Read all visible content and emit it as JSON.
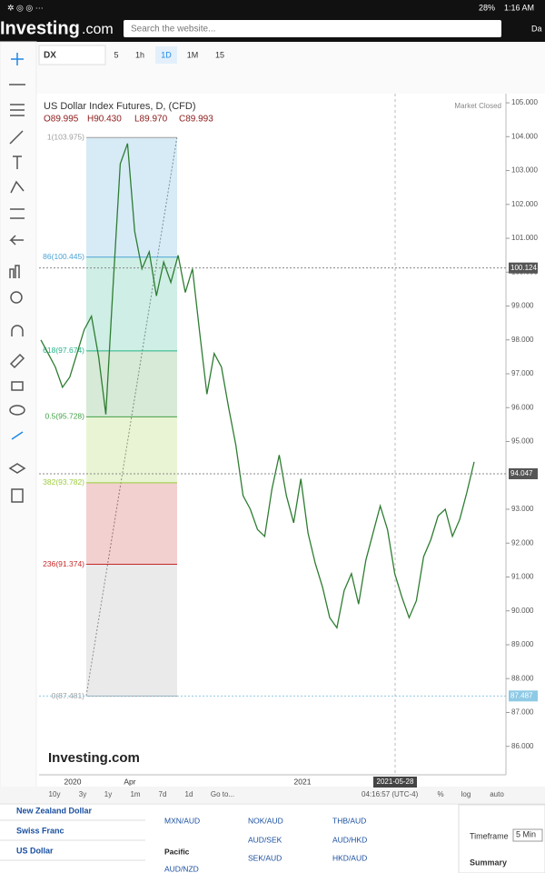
{
  "status_bar": {
    "battery": "28%",
    "time": "1:16 AM"
  },
  "header": {
    "logo": "Investing",
    "logo_suffix": ".com",
    "search_placeholder": "Search the website...",
    "user": "Da"
  },
  "toolbar": {
    "symbol": "DX",
    "intervals": [
      "5",
      "1h",
      "1D",
      "1M",
      "15"
    ]
  },
  "chart_data": {
    "type": "line",
    "title": "US Dollar Index Futures, D, (CFD)",
    "ohlc": [
      "O89.995",
      "H90.430",
      "L89.970",
      "C89.993"
    ],
    "status": "Market Closed",
    "color": "#2e7d32",
    "values": [
      98.0,
      97.6,
      97.2,
      96.6,
      96.9,
      97.6,
      98.3,
      98.7,
      97.5,
      95.8,
      99.6,
      103.2,
      103.8,
      101.2,
      100.1,
      100.6,
      99.3,
      100.3,
      99.7,
      100.5,
      99.4,
      100.1,
      98.2,
      96.4,
      97.6,
      97.2,
      96.0,
      94.9,
      93.4,
      93.0,
      92.4,
      92.2,
      93.6,
      94.6,
      93.4,
      92.6,
      93.9,
      92.3,
      91.4,
      90.7,
      89.8,
      89.5,
      90.6,
      91.1,
      90.2,
      91.5,
      92.3,
      93.1,
      92.4,
      91.1,
      90.4,
      89.8,
      90.3,
      91.6,
      92.1,
      92.8,
      93.0,
      92.2,
      92.7,
      93.5,
      94.4
    ],
    "ylim": [
      85.16,
      105.27
    ],
    "yticks": [
      {
        "value": 105,
        "label": "105.000"
      },
      {
        "value": 104,
        "label": "104.000"
      },
      {
        "value": 103,
        "label": "103.000"
      },
      {
        "value": 102,
        "label": "102.000"
      },
      {
        "value": 101,
        "label": "101.000"
      },
      {
        "value": 100,
        "label": "100.000"
      },
      {
        "value": 99,
        "label": "99.000"
      },
      {
        "value": 98,
        "label": "98.000"
      },
      {
        "value": 97,
        "label": "97.000"
      },
      {
        "value": 96,
        "label": "96.000"
      },
      {
        "value": 95,
        "label": "95.000"
      },
      {
        "value": 93,
        "label": "93.000"
      },
      {
        "value": 92,
        "label": "92.000"
      },
      {
        "value": 91,
        "label": "91.000"
      },
      {
        "value": 90,
        "label": "90.000"
      },
      {
        "value": 89,
        "label": "89.000"
      },
      {
        "value": 88,
        "label": "88.000"
      },
      {
        "value": 87,
        "label": "87.000"
      },
      {
        "value": 86,
        "label": "86.000"
      }
    ],
    "price_badges": [
      {
        "value": 100.124,
        "label": "100.124"
      },
      {
        "value": 94.047,
        "label": "94.047"
      },
      {
        "value": 87.487,
        "label": "87.487"
      }
    ],
    "fib_levels": [
      {
        "value": 103.975,
        "label": "1(103.975)",
        "color": "#9e9e9e"
      },
      {
        "value": 100.445,
        "label": "86(100.445)",
        "color": "#4aa3d4"
      },
      {
        "value": 97.674,
        "label": "618(97.674)",
        "color": "#26b38a"
      },
      {
        "value": 95.728,
        "label": "0.5(95.728)",
        "color": "#43a047"
      },
      {
        "value": 93.782,
        "label": "382(93.782)",
        "color": "#9ccc3c"
      },
      {
        "value": 91.374,
        "label": "236(91.374)",
        "color": "#c62828"
      },
      {
        "value": 87.481,
        "label": "0(87.481)",
        "color": "#9e9e9e"
      }
    ],
    "x_labels": [
      "2020",
      "Apr",
      "2021"
    ],
    "cursor_date": "2021-05-28",
    "watermark": "Investing.com"
  },
  "range_bar": [
    "10y",
    "3y",
    "1y",
    "1m",
    "7d",
    "1d",
    "Go to..."
  ],
  "clock": "04:16:57 (UTC-4)",
  "options": [
    "%",
    "log",
    "auto"
  ],
  "currency_list": [
    "New Zealand Dollar",
    "Swiss Franc",
    "US Dollar"
  ],
  "pairs": [
    "MXN/AUD",
    "NOK/AUD",
    "THB/AUD",
    "AUD/SEK",
    "AUD/HKD",
    "Pacific",
    "SEK/AUD",
    "HKD/AUD",
    "AUD/NZD"
  ],
  "side_panel": {
    "timeframe_label": "Timeframe",
    "timeframe": "5 Min",
    "summary": "Summary"
  }
}
